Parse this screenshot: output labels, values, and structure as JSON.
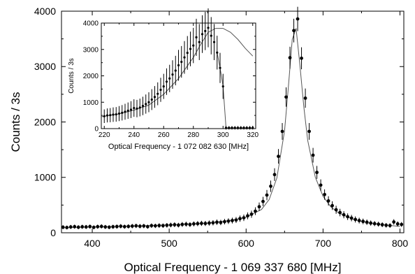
{
  "chart_data": [
    {
      "type": "scatter",
      "xlabel": "Optical Frequency - 1 069 337 680 [MHz]",
      "ylabel": "Counts / 3s",
      "xlim": [
        360,
        805
      ],
      "ylim": [
        0,
        4000
      ],
      "xticks": [
        400,
        500,
        600,
        700,
        800
      ],
      "yticks": [
        0,
        1000,
        2000,
        3000,
        4000
      ],
      "grid": false,
      "series": [
        {
          "style": "markers with error bars",
          "x": [
            362,
            367,
            372,
            377,
            382,
            387,
            392,
            397,
            402,
            407,
            412,
            417,
            422,
            427,
            432,
            437,
            442,
            447,
            452,
            457,
            462,
            467,
            472,
            477,
            482,
            487,
            492,
            497,
            502,
            507,
            512,
            517,
            522,
            527,
            532,
            537,
            542,
            547,
            552,
            557,
            562,
            567,
            572,
            577,
            582,
            587,
            592,
            597,
            602,
            607,
            612,
            617,
            622,
            627,
            632,
            637,
            642,
            647,
            652,
            657,
            662,
            667,
            672,
            677,
            682,
            687,
            692,
            697,
            702,
            707,
            712,
            717,
            722,
            727,
            732,
            737,
            742,
            747,
            752,
            757,
            762,
            767,
            772,
            777,
            782,
            787,
            792,
            797,
            802
          ],
          "y": [
            100,
            95,
            105,
            110,
            100,
            108,
            105,
            112,
            98,
            110,
            115,
            105,
            100,
            108,
            112,
            118,
            110,
            115,
            120,
            125,
            118,
            122,
            110,
            128,
            125,
            130,
            128,
            135,
            140,
            145,
            138,
            150,
            155,
            148,
            160,
            165,
            170,
            168,
            175,
            180,
            190,
            185,
            200,
            210,
            220,
            230,
            255,
            270,
            305,
            335,
            390,
            470,
            565,
            680,
            840,
            1050,
            1380,
            1830,
            2450,
            3160,
            3650,
            3860,
            3150,
            2430,
            1830,
            1400,
            1090,
            860,
            690,
            575,
            490,
            415,
            365,
            325,
            290,
            265,
            240,
            220,
            205,
            190,
            175,
            165,
            155,
            145,
            135,
            130,
            195,
            160,
            150
          ]
        },
        {
          "style": "fit curve",
          "x": [
            360,
            400,
            450,
            500,
            550,
            580,
            600,
            620,
            630,
            640,
            650,
            655,
            660,
            665,
            670,
            675,
            680,
            690,
            700,
            710,
            720,
            740,
            760,
            780,
            800
          ],
          "y": [
            90,
            105,
            120,
            140,
            175,
            225,
            280,
            420,
            600,
            990,
            1840,
            2640,
            3490,
            3690,
            3020,
            2270,
            1670,
            1000,
            660,
            470,
            360,
            240,
            175,
            140,
            115
          ]
        }
      ]
    },
    {
      "type": "scatter",
      "xlabel": "Optical Frequency - 1 072 082 630  [MHz]",
      "ylabel": "Counts / 3s",
      "xlim": [
        218,
        322
      ],
      "ylim": [
        0,
        4000
      ],
      "xticks": [
        220,
        240,
        260,
        280,
        300,
        320
      ],
      "yticks": [
        0,
        1000,
        2000,
        3000,
        4000
      ],
      "grid": false,
      "series": [
        {
          "style": "markers with error bars",
          "x": [
            220,
            222,
            224,
            226,
            228,
            230,
            232,
            234,
            236,
            238,
            240,
            242,
            244,
            246,
            248,
            250,
            252,
            254,
            256,
            258,
            260,
            262,
            264,
            266,
            268,
            270,
            272,
            274,
            276,
            278,
            280,
            282,
            284,
            286,
            288,
            290,
            292,
            294,
            296,
            298,
            300,
            302,
            304,
            306,
            308,
            310,
            312,
            314,
            316,
            318,
            320
          ],
          "y": [
            470,
            500,
            510,
            530,
            540,
            570,
            600,
            640,
            680,
            720,
            780,
            760,
            800,
            860,
            930,
            1000,
            1100,
            1200,
            1320,
            1470,
            1600,
            1780,
            1900,
            2050,
            2200,
            2400,
            2530,
            2700,
            2870,
            3020,
            3150,
            3460,
            3280,
            3580,
            3700,
            3820,
            3520,
            3280,
            2880,
            2300,
            1600,
            30,
            30,
            30,
            30,
            30,
            30,
            30,
            30,
            30,
            30
          ]
        },
        {
          "style": "fit curve",
          "x": [
            218,
            230,
            240,
            250,
            260,
            270,
            280,
            285,
            290,
            295,
            300,
            305,
            310,
            315,
            320
          ],
          "y": [
            450,
            560,
            700,
            890,
            1300,
            1900,
            2700,
            3200,
            3650,
            3800,
            3800,
            3650,
            3380,
            3040,
            2750
          ]
        },
        {
          "style": "line",
          "x": [
            296,
            298,
            300,
            302,
            304,
            306,
            308,
            310,
            312,
            314,
            316,
            318,
            320
          ],
          "y": [
            2880,
            2300,
            1600,
            30,
            30,
            30,
            30,
            30,
            30,
            30,
            30,
            30,
            30
          ]
        }
      ]
    }
  ]
}
